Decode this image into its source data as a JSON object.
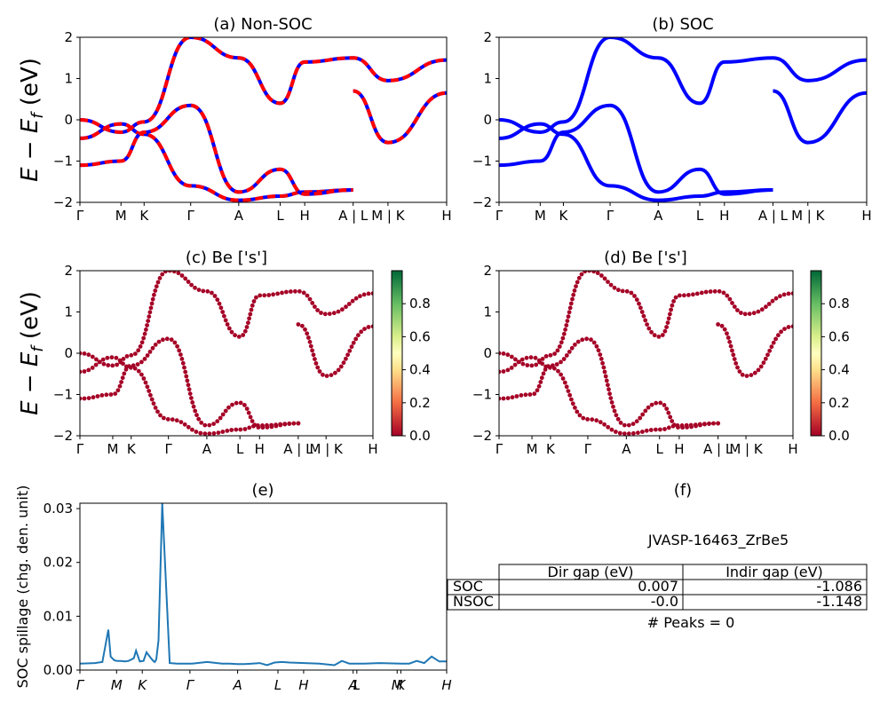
{
  "figure": {
    "panel_a_title": "(a) Non-SOC",
    "panel_b_title": "(b) SOC",
    "panel_c_title": "(c)  Be ['s']",
    "panel_d_title": "(d) Be ['s']",
    "panel_e_title": "(e)",
    "panel_f_title": "(f)",
    "band_ylabel": "E − E_f (eV)",
    "band_ylabel_main": "E − E",
    "band_ylabel_sub": "f",
    "band_ylabel_tail": " (eV)",
    "spillage_ylabel": "SOC spillage (chg. den. unit)",
    "material": "JVASP-16463_ZrBe5"
  },
  "band_axes": {
    "ylim": [
      -2,
      2
    ],
    "yticks": [
      "2",
      "1",
      "0",
      "−1",
      "−2"
    ],
    "xticks_ab": [
      "Γ",
      "M",
      "K",
      "Γ",
      "A",
      "L",
      "H",
      "A | L",
      "M | K",
      "H"
    ],
    "xticks_cd": [
      "Γ",
      "M",
      "K",
      "Γ",
      "A",
      "L",
      "H",
      "A | L",
      "M | K",
      "H"
    ]
  },
  "colorbar": {
    "range": [
      0.0,
      1.0
    ],
    "ticks": [
      "0.8",
      "0.6",
      "0.4",
      "0.2",
      "0.0"
    ],
    "colormap": "RdYlGn"
  },
  "colors": {
    "nonsoc_line": "#ff0000",
    "nonsoc_dash": "#0000ff",
    "soc_line": "#0000ff",
    "projection_point": "#a50026",
    "spillage_line": "#1f77b4"
  },
  "chart_data": [
    {
      "type": "line",
      "title": "(a) Non-SOC",
      "ylabel": "E − E_f (eV)",
      "ylim": [
        -2,
        2
      ],
      "x": [
        "Γ",
        "M",
        "K",
        "Γ",
        "A",
        "L",
        "H",
        "A | L",
        "M | K",
        "H"
      ],
      "series": [
        {
          "values": [
            -0.45,
            -0.1,
            -0.35,
            -1.6,
            -1.95,
            -1.85,
            -1.75,
            -1.7,
            null,
            null
          ]
        },
        {
          "values": [
            -1.1,
            -1.0,
            -0.3,
            0.35,
            -1.75,
            -1.2,
            -1.8,
            -1.7,
            null,
            null
          ]
        },
        {
          "values": [
            0.0,
            -0.3,
            -0.05,
            2.0,
            1.5,
            0.4,
            1.4,
            1.5,
            0.95,
            1.45
          ]
        },
        {
          "values": [
            null,
            null,
            null,
            null,
            null,
            null,
            null,
            0.7,
            -0.55,
            0.65
          ]
        }
      ]
    },
    {
      "type": "line",
      "title": "(b) SOC",
      "ylabel": "",
      "ylim": [
        -2,
        2
      ],
      "x": [
        "Γ",
        "M",
        "K",
        "Γ",
        "A",
        "L",
        "H",
        "A | L",
        "M | K",
        "H"
      ],
      "series": [
        {
          "values": [
            -0.45,
            -0.1,
            -0.35,
            -1.6,
            -1.95,
            -1.85,
            -1.75,
            -1.7,
            null,
            null
          ]
        },
        {
          "values": [
            -1.1,
            -1.0,
            -0.3,
            0.35,
            -1.75,
            -1.2,
            -1.8,
            -1.7,
            null,
            null
          ]
        },
        {
          "values": [
            0.0,
            -0.3,
            -0.05,
            2.0,
            1.5,
            0.4,
            1.4,
            1.5,
            0.95,
            1.45
          ]
        },
        {
          "values": [
            null,
            null,
            null,
            null,
            null,
            null,
            null,
            0.7,
            -0.55,
            0.65
          ]
        }
      ]
    },
    {
      "type": "scatter",
      "title": "(c)  Be ['s']",
      "ylabel": "E − E_f (eV)",
      "ylim": [
        -2,
        2
      ],
      "x": [
        "Γ",
        "M",
        "K",
        "Γ",
        "A",
        "L",
        "H",
        "A | L",
        "M | K",
        "H"
      ],
      "colorbar_range": [
        0.0,
        1.0
      ],
      "series": [
        {
          "values": [
            -0.45,
            -0.1,
            -0.35,
            -1.6,
            -1.95,
            -1.85,
            -1.75,
            -1.7,
            null,
            null
          ]
        },
        {
          "values": [
            -1.1,
            -1.0,
            -0.3,
            0.35,
            -1.75,
            -1.2,
            -1.8,
            -1.7,
            null,
            null
          ]
        },
        {
          "values": [
            0.0,
            -0.3,
            -0.05,
            2.0,
            1.5,
            0.4,
            1.4,
            1.5,
            0.95,
            1.45
          ]
        },
        {
          "values": [
            null,
            null,
            null,
            null,
            null,
            null,
            null,
            0.7,
            -0.55,
            0.65
          ]
        }
      ]
    },
    {
      "type": "scatter",
      "title": "(d) Be ['s']",
      "ylabel": "",
      "ylim": [
        -2,
        2
      ],
      "x": [
        "Γ",
        "M",
        "K",
        "Γ",
        "A",
        "L",
        "H",
        "A | L",
        "M | K",
        "H"
      ],
      "colorbar_range": [
        0.0,
        1.0
      ],
      "series": [
        {
          "values": [
            -0.45,
            -0.1,
            -0.35,
            -1.6,
            -1.95,
            -1.85,
            -1.75,
            -1.7,
            null,
            null
          ]
        },
        {
          "values": [
            -1.1,
            -1.0,
            -0.3,
            0.35,
            -1.75,
            -1.2,
            -1.8,
            -1.7,
            null,
            null
          ]
        },
        {
          "values": [
            0.0,
            -0.3,
            -0.05,
            2.0,
            1.5,
            0.4,
            1.4,
            1.5,
            0.95,
            1.45
          ]
        },
        {
          "values": [
            null,
            null,
            null,
            null,
            null,
            null,
            null,
            0.7,
            -0.55,
            0.65
          ]
        }
      ]
    },
    {
      "type": "line",
      "title": "(e)",
      "ylabel": "SOC spillage (chg. den. unit)",
      "ylim": [
        0.0,
        0.031
      ],
      "yticks": [
        "0.03",
        "0.02",
        "0.01",
        "0.00"
      ],
      "xticks": [
        "Γ",
        "M",
        "K",
        "Γ",
        "A",
        "L",
        "H",
        "A",
        "L",
        "M",
        "K",
        "H"
      ],
      "x_k": [
        0,
        0.2,
        0.3,
        0.38,
        0.41,
        0.46,
        0.5,
        0.55,
        0.6,
        0.65,
        0.72,
        0.75,
        0.8,
        0.85,
        0.89,
        0.95,
        0.98,
        1.0,
        1.02,
        1.05,
        1.1,
        1.2,
        1.3,
        1.5,
        1.7,
        1.9,
        2.0,
        2.1,
        2.2,
        2.3,
        2.4,
        2.5,
        2.6,
        2.7,
        2.8,
        3.0,
        3.2,
        3.4,
        3.45,
        3.5,
        3.6,
        3.8,
        4.0,
        4.3,
        4.4,
        4.5,
        4.6,
        4.7,
        4.8,
        4.9
      ],
      "values": [
        0.0012,
        0.0013,
        0.0015,
        0.0075,
        0.0025,
        0.0018,
        0.0017,
        0.0017,
        0.0016,
        0.0017,
        0.0022,
        0.0036,
        0.0016,
        0.0017,
        0.0033,
        0.0022,
        0.0017,
        0.0015,
        0.002,
        0.0055,
        0.031,
        0.0013,
        0.0012,
        0.0012,
        0.0015,
        0.0012,
        0.0012,
        0.0011,
        0.0011,
        0.0012,
        0.0013,
        0.0009,
        0.0014,
        0.0015,
        0.0014,
        0.0013,
        0.0012,
        0.0009,
        0.0013,
        0.0017,
        0.0012,
        0.0012,
        0.0013,
        0.0012,
        0.0012,
        0.0017,
        0.0013,
        0.0025,
        0.0016,
        0.0016
      ]
    },
    {
      "type": "table",
      "title": "(f)",
      "caption": "JVASP-16463_ZrBe5",
      "columns": [
        "",
        "Dir gap (eV)",
        "Indir gap (eV)"
      ],
      "rows": [
        [
          "SOC",
          "0.007",
          "-1.086"
        ],
        [
          "NSOC",
          "-0.0",
          "-1.148"
        ]
      ],
      "footer": "# Peaks = 0"
    }
  ]
}
